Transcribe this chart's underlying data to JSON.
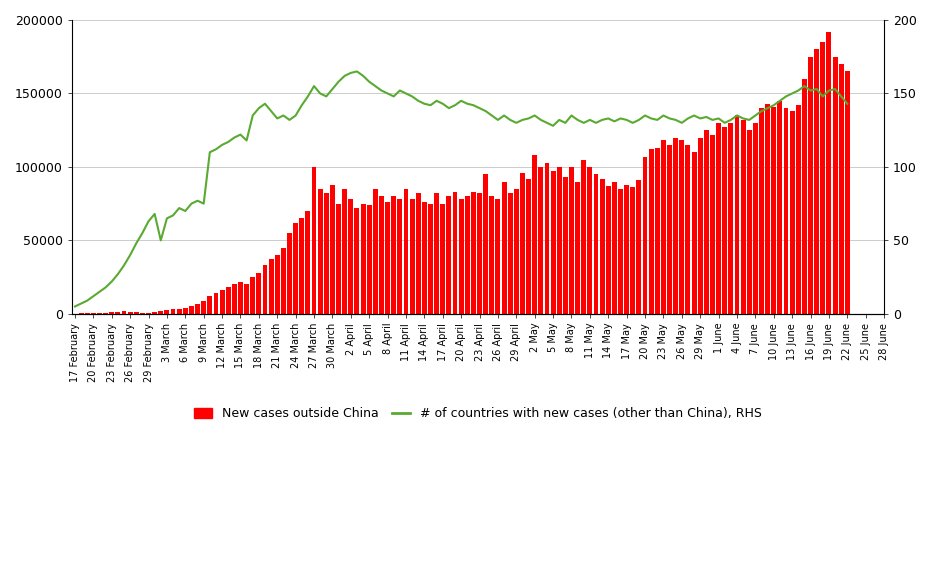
{
  "bar_color": "#ff0000",
  "line_color": "#5aaa32",
  "ylim_left": [
    0,
    200000
  ],
  "ylim_right": [
    0,
    200
  ],
  "yticks_left": [
    0,
    50000,
    100000,
    150000,
    200000
  ],
  "yticks_right": [
    0,
    50,
    100,
    150,
    200
  ],
  "background_color": "#ffffff",
  "grid_color": "#cccccc",
  "legend_bar_label": "New cases outside China",
  "legend_line_label": "# of countries with new cases (other than China), RHS",
  "tick_label_dates": [
    "17 February",
    "20 February",
    "23 February",
    "26 February",
    "29 February",
    "3 March",
    "6 March",
    "9 March",
    "12 March",
    "15 March",
    "18 March",
    "21 March",
    "24 March",
    "27 March",
    "30 March",
    "2 April",
    "5 April",
    "8 April",
    "11 April",
    "14 April",
    "17 April",
    "20 April",
    "23 April",
    "26 April",
    "29 April",
    "2 May",
    "5 May",
    "8 May",
    "11 May",
    "14 May",
    "17 May",
    "20 May",
    "23 May",
    "26 May",
    "29 May",
    "1 June",
    "4 June",
    "7 June",
    "10 June",
    "13 June",
    "16 June",
    "19 June",
    "22 June",
    "25 June",
    "28 June"
  ],
  "bar_values": [
    200,
    300,
    500,
    700,
    500,
    900,
    1200,
    1500,
    1800,
    1200,
    1000,
    800,
    600,
    1000,
    2000,
    2500,
    3000,
    3500,
    4000,
    5500,
    7000,
    9000,
    12000,
    14000,
    16000,
    18000,
    20000,
    22000,
    20000,
    25000,
    28000,
    33000,
    37000,
    40000,
    45000,
    55000,
    62000,
    65000,
    70000,
    100000,
    85000,
    82000,
    88000,
    75000,
    85000,
    78000,
    72000,
    75000,
    74000,
    85000,
    80000,
    76000,
    80000,
    78000,
    85000,
    78000,
    82000,
    76000,
    75000,
    82000,
    75000,
    80000,
    83000,
    78000,
    80000,
    83000,
    82000,
    95000,
    80000,
    78000,
    90000,
    82000,
    85000,
    96000,
    92000,
    108000,
    100000,
    103000,
    97000,
    100000,
    93000,
    100000,
    90000,
    105000,
    100000,
    95000,
    92000,
    87000,
    90000,
    85000,
    88000,
    86000,
    91000,
    107000,
    112000,
    113000,
    118000,
    115000,
    120000,
    118000,
    115000,
    110000,
    120000,
    125000,
    122000,
    130000,
    127000,
    130000,
    135000,
    132000,
    125000,
    130000,
    140000,
    143000,
    141000,
    145000,
    140000,
    138000,
    142000,
    160000,
    175000,
    180000,
    185000,
    192000,
    175000,
    170000,
    165000
  ],
  "line_values": [
    5,
    7,
    9,
    12,
    15,
    18,
    22,
    27,
    33,
    40,
    48,
    55,
    63,
    68,
    50,
    65,
    67,
    72,
    70,
    75,
    77,
    75,
    110,
    112,
    115,
    117,
    120,
    122,
    118,
    135,
    140,
    143,
    138,
    133,
    135,
    132,
    135,
    142,
    148,
    155,
    150,
    148,
    153,
    158,
    162,
    164,
    165,
    162,
    158,
    155,
    152,
    150,
    148,
    152,
    150,
    148,
    145,
    143,
    142,
    145,
    143,
    140,
    142,
    145,
    143,
    142,
    140,
    138,
    135,
    132,
    135,
    132,
    130,
    132,
    133,
    135,
    132,
    130,
    128,
    132,
    130,
    135,
    132,
    130,
    132,
    130,
    132,
    133,
    131,
    133,
    132,
    130,
    132,
    135,
    133,
    132,
    135,
    133,
    132,
    130,
    133,
    135,
    133,
    134,
    132,
    133,
    130,
    132,
    135,
    133,
    132,
    135,
    138,
    140,
    142,
    145,
    148,
    150,
    152,
    155,
    152,
    153,
    148,
    152,
    153,
    148,
    143
  ]
}
